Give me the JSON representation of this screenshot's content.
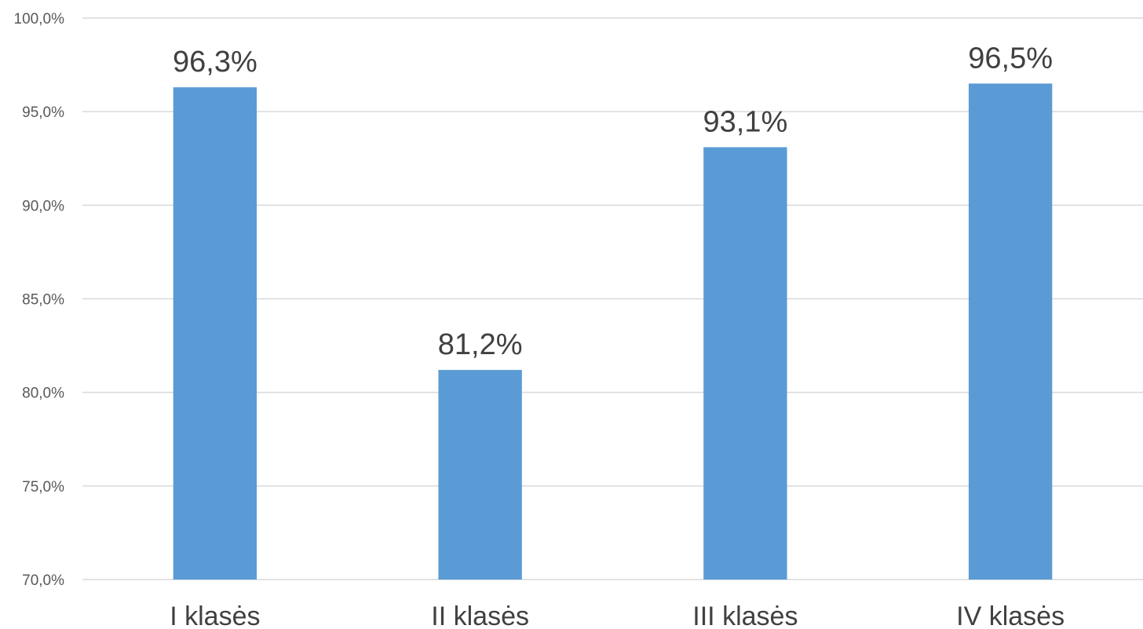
{
  "chart_data": {
    "type": "bar",
    "title": "",
    "xlabel": "",
    "ylabel": "",
    "categories": [
      "I klasės",
      "II klasės",
      "III klasės",
      "IV klasės"
    ],
    "values": [
      96.3,
      81.2,
      93.1,
      96.5
    ],
    "data_labels": [
      "96,3%",
      "81,2%",
      "93,1%",
      "96,5%"
    ],
    "ylim": [
      70,
      100
    ],
    "yticks": [
      70,
      75,
      80,
      85,
      90,
      95,
      100
    ],
    "ytick_labels": [
      "70,0%",
      "75,0%",
      "80,0%",
      "85,0%",
      "90,0%",
      "95,0%",
      "100,0%"
    ],
    "grid": true,
    "legend": "none",
    "bar_color": "#5b9bd5"
  }
}
